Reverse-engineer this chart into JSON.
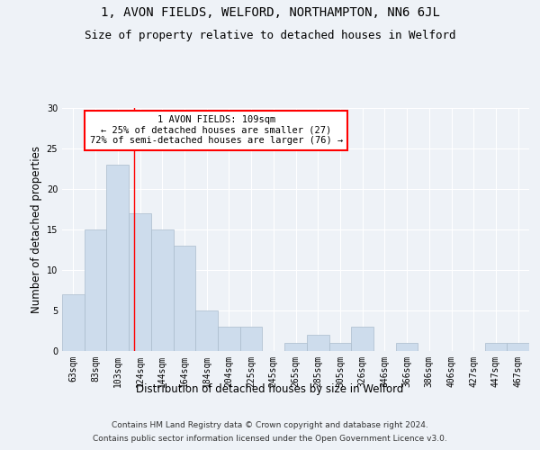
{
  "title1": "1, AVON FIELDS, WELFORD, NORTHAMPTON, NN6 6JL",
  "title2": "Size of property relative to detached houses in Welford",
  "xlabel": "Distribution of detached houses by size in Welford",
  "ylabel": "Number of detached properties",
  "categories": [
    "63sqm",
    "83sqm",
    "103sqm",
    "124sqm",
    "144sqm",
    "164sqm",
    "184sqm",
    "204sqm",
    "225sqm",
    "245sqm",
    "265sqm",
    "285sqm",
    "305sqm",
    "326sqm",
    "346sqm",
    "366sqm",
    "386sqm",
    "406sqm",
    "427sqm",
    "447sqm",
    "467sqm"
  ],
  "values": [
    7,
    15,
    23,
    17,
    15,
    13,
    5,
    3,
    3,
    0,
    1,
    2,
    1,
    3,
    0,
    1,
    0,
    0,
    0,
    1,
    1
  ],
  "bar_color": "#cddcec",
  "bar_edge_color": "#aabccc",
  "bar_width": 1.0,
  "red_line_x": 2.75,
  "annotation_line1": "1 AVON FIELDS: 109sqm",
  "annotation_line2": "← 25% of detached houses are smaller (27)",
  "annotation_line3": "72% of semi-detached houses are larger (76) →",
  "annotation_box_color": "white",
  "annotation_box_edge_color": "red",
  "ylim": [
    0,
    30
  ],
  "yticks": [
    0,
    5,
    10,
    15,
    20,
    25,
    30
  ],
  "footer1": "Contains HM Land Registry data © Crown copyright and database right 2024.",
  "footer2": "Contains public sector information licensed under the Open Government Licence v3.0.",
  "background_color": "#eef2f7",
  "plot_background_color": "#eef2f7",
  "grid_color": "#ffffff",
  "title_fontsize": 10,
  "subtitle_fontsize": 9,
  "axis_label_fontsize": 8.5,
  "tick_fontsize": 7,
  "annotation_fontsize": 7.5,
  "footer_fontsize": 6.5
}
